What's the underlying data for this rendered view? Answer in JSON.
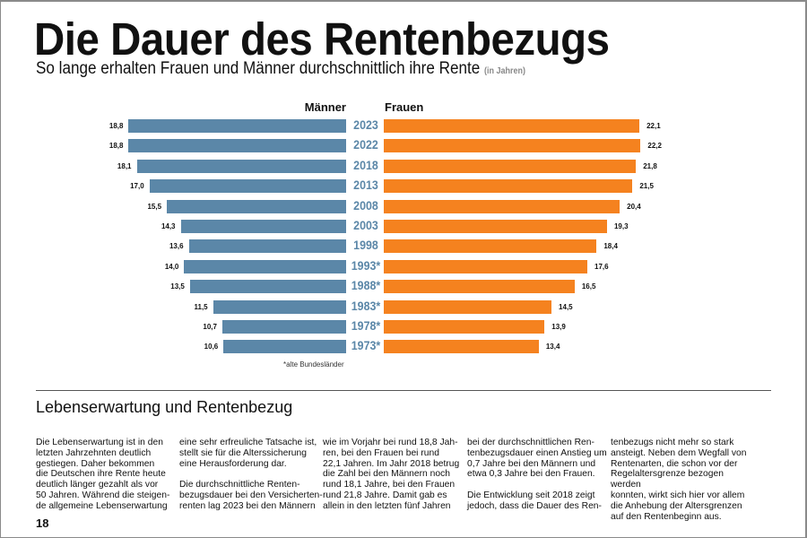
{
  "title": "Die Dauer des Rentenbezugs",
  "subtitle": "So lange erhalten Frauen und Männer durchschnittlich ihre Rente",
  "subtitle_unit": "(in Jahren)",
  "chart_data": {
    "type": "bar",
    "orientation": "horizontal-butterfly",
    "categories": [
      "2023",
      "2022",
      "2018",
      "2013",
      "2008",
      "2003",
      "1998",
      "1993*",
      "1988*",
      "1983*",
      "1978*",
      "1973*"
    ],
    "series": [
      {
        "name": "Männer",
        "color": "#5b87a8",
        "values": [
          18.8,
          18.8,
          18.1,
          17.0,
          15.5,
          14.3,
          13.6,
          14.0,
          13.5,
          11.5,
          10.7,
          10.6
        ],
        "labels": [
          "18,8",
          "18,8",
          "18,1",
          "17,0",
          "15,5",
          "14,3",
          "13,6",
          "14,0",
          "13,5",
          "11,5",
          "10,7",
          "10,6"
        ]
      },
      {
        "name": "Frauen",
        "color": "#f5821f",
        "values": [
          22.1,
          22.2,
          21.8,
          21.5,
          20.4,
          19.3,
          18.4,
          17.6,
          16.5,
          14.5,
          13.9,
          13.4
        ],
        "labels": [
          "22,1",
          "22,2",
          "21,8",
          "21,5",
          "20,4",
          "19,3",
          "18,4",
          "17,6",
          "16,5",
          "14,5",
          "13,9",
          "13,4"
        ]
      }
    ],
    "footnote": "*alte Bundesländer"
  },
  "section": {
    "heading": "Lebenserwartung und Rentenbezug",
    "columns": [
      "Die Lebenserwartung ist in den\nletzten Jahrzehnten deutlich\ngestiegen. Daher bekommen\ndie Deutschen ihre Rente heute\ndeutlich länger gezahlt als vor\n50 Jahren. Während die steigen-\nde allgemeine Lebenserwartung",
      "eine sehr erfreuliche Tatsache ist,\nstellt sie für die Alterssicherung\neine Herausforderung dar.\n\nDie durchschnittliche Renten-\nbezugsdauer bei den Versicherten-\nrenten lag 2023 bei den Männern",
      "wie im Vorjahr bei rund 18,8 Jah-\nren, bei den Frauen bei rund\n22,1 Jahren. Im Jahr 2018 betrug\ndie Zahl bei den Männern noch\nrund 18,1 Jahre, bei den Frauen\nrund 21,8 Jahre. Damit gab es\nallein in den letzten fünf Jahren",
      "bei der durchschnittlichen Ren-\ntenbezugsdauer einen Anstieg um\n0,7 Jahre bei den Männern und\netwa 0,3 Jahre bei den Frauen.\n\nDie Entwicklung seit 2018 zeigt\njedoch, dass die Dauer des Ren-",
      "tenbezugs nicht mehr so stark\nansteigt. Neben dem Wegfall von\nRentenarten, die schon vor der\nRegelaltersgrenze bezogen werden\nkonnten, wirkt sich hier vor allem\ndie Anhebung der Altersgrenzen\nauf den Rentenbeginn aus."
    ]
  },
  "page_number": "18"
}
